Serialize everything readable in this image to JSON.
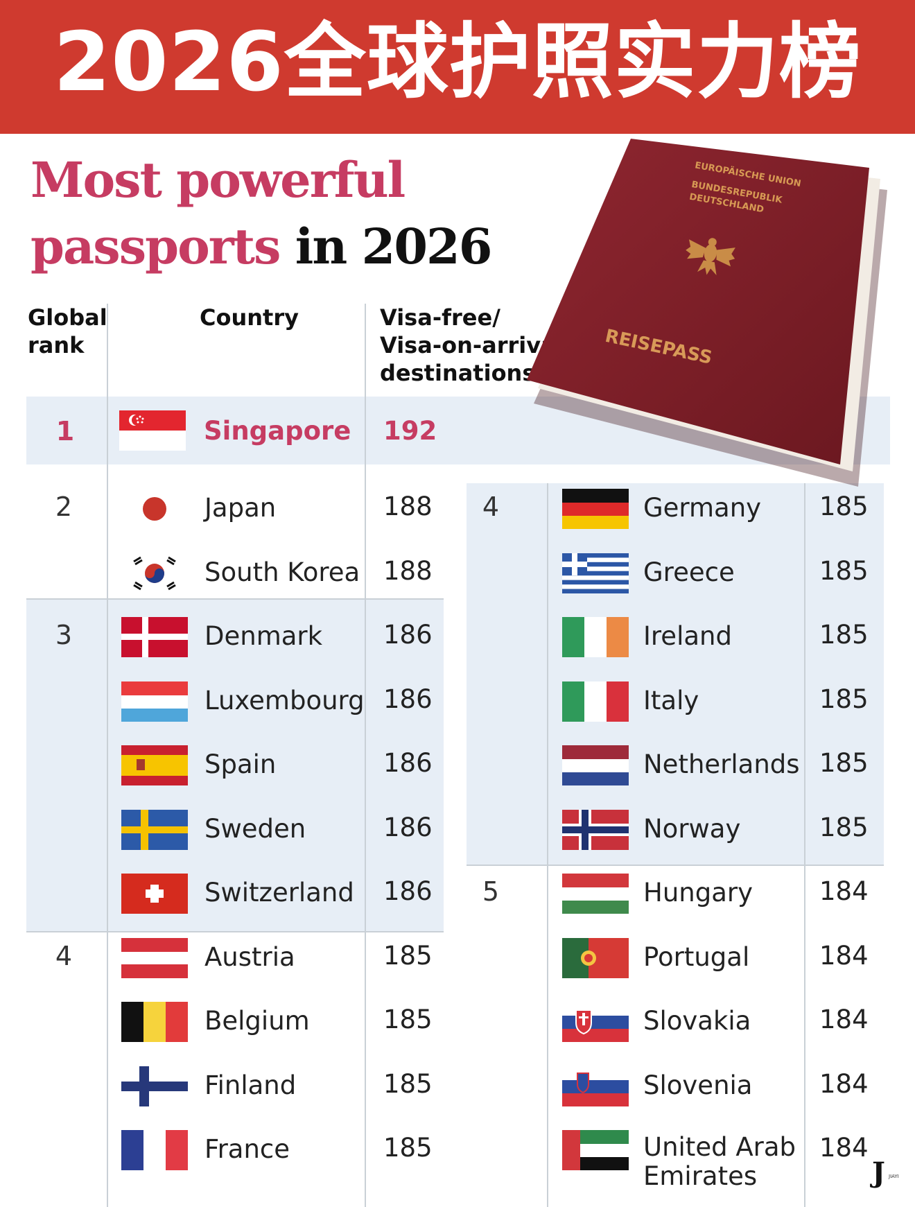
{
  "banner": {
    "title": "2026全球护照实力榜"
  },
  "subtitle": {
    "part1": "Most powerful",
    "part2": "passports",
    "part3": "in 2026"
  },
  "columns": {
    "rank_line1": "Global",
    "rank_line2": "rank",
    "country": "Country",
    "dest_line1": "Visa-free/",
    "dest_line2": "Visa-on-arrival",
    "dest_line3": "destinations"
  },
  "top_row": {
    "rank": "1",
    "country": "Singapore",
    "score": "192",
    "flag": "singapore-flag"
  },
  "left_groups": [
    {
      "rank": "2",
      "rows": [
        {
          "country": "Japan",
          "score": "188",
          "flag": "japan-flag"
        },
        {
          "country": "South Korea",
          "score": "188",
          "flag": "south-korea-flag"
        }
      ]
    },
    {
      "rank": "3",
      "rows": [
        {
          "country": "Denmark",
          "score": "186",
          "flag": "denmark-flag"
        },
        {
          "country": "Luxembourg",
          "score": "186",
          "flag": "luxembourg-flag"
        },
        {
          "country": "Spain",
          "score": "186",
          "flag": "spain-flag"
        },
        {
          "country": "Sweden",
          "score": "186",
          "flag": "sweden-flag"
        },
        {
          "country": "Switzerland",
          "score": "186",
          "flag": "switzerland-flag"
        }
      ]
    },
    {
      "rank": "4",
      "rows": [
        {
          "country": "Austria",
          "score": "185",
          "flag": "austria-flag"
        },
        {
          "country": "Belgium",
          "score": "185",
          "flag": "belgium-flag"
        },
        {
          "country": "Finland",
          "score": "185",
          "flag": "finland-flag"
        },
        {
          "country": "France",
          "score": "185",
          "flag": "france-flag"
        }
      ]
    }
  ],
  "right_groups": [
    {
      "rank": "4",
      "rows": [
        {
          "country": "Germany",
          "score": "185",
          "flag": "germany-flag"
        },
        {
          "country": "Greece",
          "score": "185",
          "flag": "greece-flag"
        },
        {
          "country": "Ireland",
          "score": "185",
          "flag": "ireland-flag"
        },
        {
          "country": "Italy",
          "score": "185",
          "flag": "italy-flag"
        },
        {
          "country": "Netherlands",
          "score": "185",
          "flag": "netherlands-flag"
        },
        {
          "country": "Norway",
          "score": "185",
          "flag": "norway-flag"
        }
      ]
    },
    {
      "rank": "5",
      "rows": [
        {
          "country": "Hungary",
          "score": "184",
          "flag": "hungary-flag"
        },
        {
          "country": "Portugal",
          "score": "184",
          "flag": "portugal-flag"
        },
        {
          "country": "Slovakia",
          "score": "184",
          "flag": "slovakia-flag"
        },
        {
          "country": "Slovenia",
          "score": "184",
          "flag": "slovenia-flag"
        },
        {
          "country": "United Arab\nEmirates",
          "score": "184",
          "flag": "uae-flag"
        }
      ]
    }
  ],
  "passport": {
    "line1": "EUROPÄISCHE UNION",
    "line2": "BUNDESREPUBLIK",
    "line3": "DEUTSCHLAND",
    "label": "REISEPASS",
    "icon": "eagle-emblem-icon"
  },
  "colors": {
    "banner": "#cf3a2f",
    "accent": "#c63c62",
    "band": "#e7eef6",
    "passport": "#7e1e26"
  },
  "logo": {
    "mark": "J",
    "sub": "JIAYI"
  }
}
